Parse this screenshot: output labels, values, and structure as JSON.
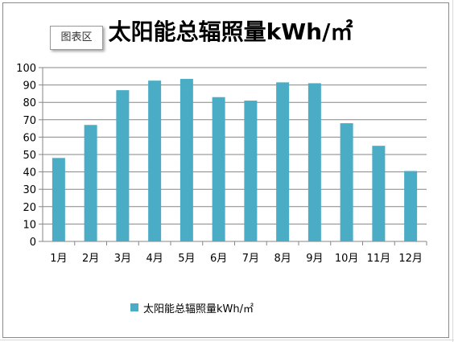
{
  "tooltip": {
    "text": "图表区"
  },
  "chart_data": {
    "type": "bar",
    "title": "太阳能总辐照量kWh/㎡",
    "categories": [
      "1月",
      "2月",
      "3月",
      "4月",
      "5月",
      "6月",
      "7月",
      "8月",
      "9月",
      "10月",
      "11月",
      "12月"
    ],
    "series": [
      {
        "name": "太阳能总辐照量kWh/㎡",
        "values": [
          48,
          67,
          87,
          92.5,
          93.5,
          83,
          81,
          91.5,
          91,
          68,
          55,
          40.5
        ]
      }
    ],
    "ylim": [
      0,
      100
    ],
    "yticks": [
      "0",
      "10",
      "20",
      "30",
      "40",
      "50",
      "60",
      "70",
      "80",
      "90",
      "100"
    ],
    "grid": true,
    "legend_position": "bottom",
    "colors": {
      "bar": "#4BACC6",
      "grid": "#868686",
      "axis": "#868686"
    }
  }
}
